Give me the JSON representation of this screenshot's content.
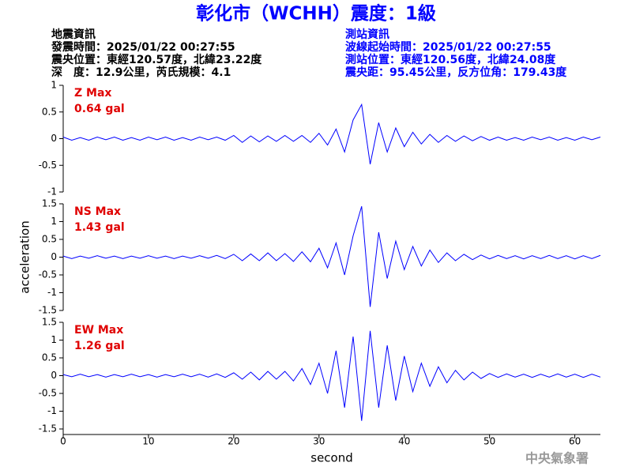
{
  "header": {
    "title": "彰化市（WCHH）震度：1級",
    "left": [
      "地震資訊",
      "發震時間：2025/01/22 00:27:55",
      "震央位置：東經120.57度，北緯23.22度",
      "深　度：12.9公里，芮氏規模：4.1"
    ],
    "right": [
      "測站資訊",
      "波線起始時間：2025/01/22 00:27:55",
      "測站位置：東經120.56度，北緯24.08度",
      "震央距：95.45公里，反方位角：179.43度"
    ],
    "watermark": "中央氣象署"
  },
  "chart_data": [
    {
      "type": "line",
      "annotation": [
        "Z Max",
        "0.64 gal"
      ],
      "color": "#0000ff",
      "x": [
        0,
        1,
        2,
        3,
        4,
        5,
        6,
        7,
        8,
        9,
        10,
        11,
        12,
        13,
        14,
        15,
        16,
        17,
        18,
        19,
        20,
        21,
        22,
        23,
        24,
        25,
        26,
        27,
        28,
        29,
        30,
        31,
        32,
        33,
        34,
        35,
        36,
        37,
        38,
        39,
        40,
        41,
        42,
        43,
        44,
        45,
        46,
        47,
        48,
        49,
        50,
        51,
        52,
        53,
        54,
        55,
        56,
        57,
        58,
        59,
        60,
        61,
        62,
        63
      ],
      "values": [
        0.03,
        -0.03,
        0.02,
        -0.03,
        0.03,
        -0.02,
        0.03,
        -0.03,
        0.02,
        -0.03,
        0.03,
        -0.02,
        0.03,
        -0.03,
        0.02,
        -0.03,
        0.03,
        -0.02,
        0.03,
        -0.03,
        0.06,
        -0.07,
        0.05,
        -0.06,
        0.05,
        -0.05,
        0.06,
        -0.05,
        0.06,
        -0.07,
        0.1,
        -0.12,
        0.18,
        -0.25,
        0.35,
        0.64,
        -0.48,
        0.3,
        -0.25,
        0.2,
        -0.15,
        0.12,
        -0.1,
        0.08,
        -0.07,
        0.06,
        -0.05,
        0.05,
        -0.04,
        0.04,
        -0.03,
        0.03,
        -0.03,
        0.02,
        -0.03,
        0.03,
        -0.02,
        0.03,
        -0.03,
        0.02,
        -0.03,
        0.03,
        -0.02,
        0.03
      ],
      "xlim": [
        0,
        63
      ],
      "ylim": [
        -1,
        1
      ],
      "yticks": [
        -1,
        -0.5,
        0,
        0.5,
        1
      ]
    },
    {
      "type": "line",
      "annotation": [
        "NS Max",
        "1.43 gal"
      ],
      "color": "#0000ff",
      "ylabel": "acceleration",
      "x": [
        0,
        1,
        2,
        3,
        4,
        5,
        6,
        7,
        8,
        9,
        10,
        11,
        12,
        13,
        14,
        15,
        16,
        17,
        18,
        19,
        20,
        21,
        22,
        23,
        24,
        25,
        26,
        27,
        28,
        29,
        30,
        31,
        32,
        33,
        34,
        35,
        36,
        37,
        38,
        39,
        40,
        41,
        42,
        43,
        44,
        45,
        46,
        47,
        48,
        49,
        50,
        51,
        52,
        53,
        54,
        55,
        56,
        57,
        58,
        59,
        60,
        61,
        62,
        63
      ],
      "values": [
        0.03,
        -0.04,
        0.03,
        -0.03,
        0.04,
        -0.03,
        0.03,
        -0.04,
        0.03,
        -0.03,
        0.04,
        -0.03,
        0.03,
        -0.04,
        0.03,
        -0.03,
        0.04,
        -0.03,
        0.05,
        -0.04,
        0.08,
        -0.1,
        0.09,
        -0.1,
        0.12,
        -0.1,
        0.1,
        -0.12,
        0.15,
        -0.13,
        0.25,
        -0.3,
        0.4,
        -0.5,
        0.6,
        1.43,
        -1.4,
        0.7,
        -0.6,
        0.45,
        -0.35,
        0.3,
        -0.25,
        0.2,
        -0.15,
        0.12,
        -0.1,
        0.08,
        -0.07,
        0.06,
        -0.05,
        0.05,
        -0.04,
        0.04,
        -0.05,
        0.04,
        -0.04,
        0.05,
        -0.04,
        0.04,
        -0.05,
        0.04,
        -0.04,
        0.05
      ],
      "xlim": [
        0,
        63
      ],
      "ylim": [
        -1.5,
        1.5
      ],
      "yticks": [
        -1.5,
        -1,
        -0.5,
        0,
        0.5,
        1,
        1.5
      ]
    },
    {
      "type": "line",
      "annotation": [
        "EW Max",
        "1.26 gal"
      ],
      "color": "#0000ff",
      "xlabel": "second",
      "x": [
        0,
        1,
        2,
        3,
        4,
        5,
        6,
        7,
        8,
        9,
        10,
        11,
        12,
        13,
        14,
        15,
        16,
        17,
        18,
        19,
        20,
        21,
        22,
        23,
        24,
        25,
        26,
        27,
        28,
        29,
        30,
        31,
        32,
        33,
        34,
        35,
        36,
        37,
        38,
        39,
        40,
        41,
        42,
        43,
        44,
        45,
        46,
        47,
        48,
        49,
        50,
        51,
        52,
        53,
        54,
        55,
        56,
        57,
        58,
        59,
        60,
        61,
        62,
        63
      ],
      "values": [
        0.03,
        -0.03,
        0.04,
        -0.03,
        0.03,
        -0.04,
        0.03,
        -0.03,
        0.04,
        -0.03,
        0.03,
        -0.04,
        0.03,
        -0.03,
        0.04,
        -0.03,
        0.04,
        -0.04,
        0.05,
        -0.05,
        0.08,
        -0.1,
        0.1,
        -0.12,
        0.12,
        -0.1,
        0.12,
        -0.15,
        0.2,
        -0.25,
        0.35,
        -0.5,
        0.7,
        -0.9,
        1.1,
        -1.27,
        1.26,
        -0.9,
        0.85,
        -0.7,
        0.55,
        -0.45,
        0.35,
        -0.3,
        0.25,
        -0.2,
        0.15,
        -0.12,
        0.1,
        -0.08,
        0.06,
        -0.05,
        0.05,
        -0.04,
        0.04,
        -0.05,
        0.04,
        -0.04,
        0.05,
        -0.04,
        0.04,
        -0.05,
        0.04,
        -0.04
      ],
      "xlim": [
        0,
        63
      ],
      "ylim": [
        -1.5,
        1.5
      ],
      "yticks": [
        -1.5,
        -1,
        -0.5,
        0,
        0.5,
        1,
        1.5
      ],
      "xticks": [
        0,
        10,
        20,
        30,
        40,
        50,
        60
      ]
    }
  ]
}
